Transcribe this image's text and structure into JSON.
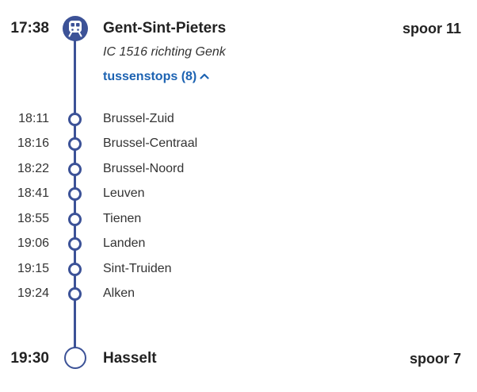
{
  "departure": {
    "time": "17:38",
    "station": "Gent-Sint-Pieters",
    "platform": "spoor 11"
  },
  "train": {
    "description": "IC 1516 richting Genk"
  },
  "intermediate_toggle": {
    "label": "tussenstops (8)",
    "chevron": "^"
  },
  "stops": [
    {
      "time": "18:11",
      "station": "Brussel-Zuid"
    },
    {
      "time": "18:16",
      "station": "Brussel-Centraal"
    },
    {
      "time": "18:22",
      "station": "Brussel-Noord"
    },
    {
      "time": "18:41",
      "station": "Leuven"
    },
    {
      "time": "18:55",
      "station": "Tienen"
    },
    {
      "time": "19:06",
      "station": "Landen"
    },
    {
      "time": "19:15",
      "station": "Sint-Truiden"
    },
    {
      "time": "19:24",
      "station": "Alken"
    }
  ],
  "arrival": {
    "time": "19:30",
    "station": "Hasselt",
    "platform": "spoor 7"
  },
  "colors": {
    "line": "#3c5297",
    "link": "#1d63b2"
  },
  "icons": {
    "departure": "train-icon",
    "arrival": "destination-circle-icon"
  }
}
